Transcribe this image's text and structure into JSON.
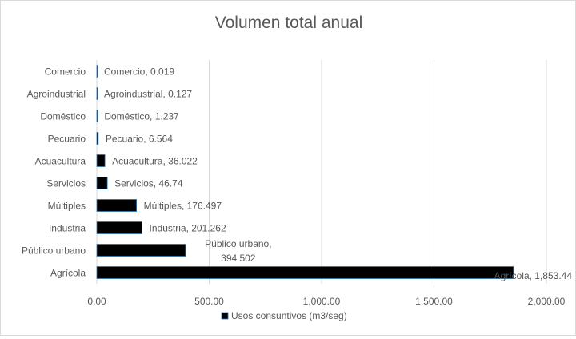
{
  "chart_data": {
    "type": "bar",
    "orientation": "horizontal",
    "title": "Volumen  total anual",
    "categories": [
      "Agrícola",
      "Público urbano",
      "Industria",
      "Múltiples",
      "Servicios",
      "Acuacultura",
      "Pecuario",
      "Doméstico",
      "Agroindustrial",
      "Comercio"
    ],
    "series": [
      {
        "name": "Usos consuntivos (m3/seg)",
        "values": [
          1853.44,
          394.502,
          201.262,
          176.497,
          46.74,
          36.022,
          6.564,
          1.237,
          0.127,
          0.019
        ]
      }
    ],
    "data_labels": [
      "Agrícola, 1,853.44",
      "Público urbano, 394.502",
      "Industria, 201.262",
      "Múltiples, 176.497",
      "Servicios, 46.74",
      "Acuacultura, 36.022",
      "Pecuario, 6.564",
      "Doméstico, 1.237",
      "Agroindustrial, 0.127",
      "Comercio, 0.019"
    ],
    "x_ticks": [
      "0.00",
      "500.00",
      "1,000.00",
      "1,500.00",
      "2,000.00"
    ],
    "xlim": [
      0,
      2000
    ],
    "grid": true,
    "legend_position": "bottom",
    "colors": {
      "bar": "#000000",
      "bar_outline": "#2e75b6",
      "grid": "#d9d9d9",
      "text": "#595959",
      "title": "#595959"
    }
  }
}
